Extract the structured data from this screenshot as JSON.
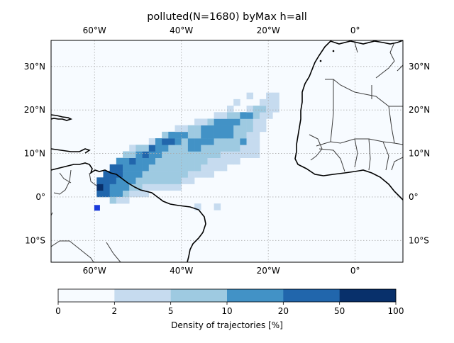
{
  "title": "polluted(N=1680) byMax h=all",
  "map": {
    "lon_range": [
      -70,
      11
    ],
    "lat_range": [
      -15,
      36
    ],
    "lon_ticks": [
      {
        "value": -60,
        "label": "60°W"
      },
      {
        "value": -40,
        "label": "40°W"
      },
      {
        "value": -20,
        "label": "20°W"
      },
      {
        "value": 0,
        "label": "0°"
      }
    ],
    "lat_ticks": [
      {
        "value": 30,
        "label": "30°N"
      },
      {
        "value": 20,
        "label": "20°N"
      },
      {
        "value": 10,
        "label": "10°N"
      },
      {
        "value": 0,
        "label": "0°"
      },
      {
        "value": -10,
        "label": "10°S"
      }
    ],
    "gridlines": true,
    "marker": {
      "lon": -59.4,
      "lat": -2.5,
      "color": "#1a3adb"
    }
  },
  "colorbar": {
    "label": "Density of trajectories [%]",
    "boundaries": [
      "0",
      "2",
      "5",
      "10",
      "20",
      "50",
      "100"
    ],
    "colors": [
      "#f7fbff",
      "#c6dbef",
      "#9ecae1",
      "#4292c6",
      "#2166ac",
      "#08306b"
    ]
  },
  "density_grid": {
    "lon_start": -70,
    "lat_start": -15,
    "cell_deg": 1.5,
    "level_note_levels": "0..5 map to colorbar bins",
    "rows": [
      {
        "lat_row": 10,
        "cells": [
          [
            -59.5,
            4
          ],
          [
            -58,
            4
          ],
          [
            -56.5,
            3
          ],
          [
            -55,
            3
          ],
          [
            -53.5,
            2
          ],
          [
            -52,
            1
          ],
          [
            -50.5,
            1
          ],
          [
            -49,
            1
          ]
        ]
      },
      {
        "lat_row": 11,
        "cells": [
          [
            -59.5,
            5
          ],
          [
            -58,
            4
          ],
          [
            -56.5,
            3
          ],
          [
            -55,
            3
          ],
          [
            -53.5,
            3
          ],
          [
            -52,
            2
          ],
          [
            -50.5,
            2
          ],
          [
            -49,
            1
          ],
          [
            -47.5,
            1
          ],
          [
            -46,
            1
          ],
          [
            -44.5,
            1
          ],
          [
            -43,
            1
          ],
          [
            -41.5,
            1
          ]
        ]
      },
      {
        "lat_row": 12,
        "cells": [
          [
            -59.5,
            4
          ],
          [
            -58,
            4
          ],
          [
            -56.5,
            4
          ],
          [
            -55,
            3
          ],
          [
            -53.5,
            3
          ],
          [
            -52,
            3
          ],
          [
            -50.5,
            2
          ],
          [
            -49,
            2
          ],
          [
            -47.5,
            2
          ],
          [
            -46,
            2
          ],
          [
            -44.5,
            2
          ],
          [
            -43,
            2
          ],
          [
            -41.5,
            2
          ],
          [
            -40,
            1
          ],
          [
            -38.5,
            1
          ]
        ]
      },
      {
        "lat_row": 13,
        "cells": [
          [
            -58,
            4
          ],
          [
            -56.5,
            4
          ],
          [
            -55,
            4
          ],
          [
            -53.5,
            3
          ],
          [
            -52,
            3
          ],
          [
            -50.5,
            3
          ],
          [
            -49,
            2
          ],
          [
            -47.5,
            2
          ],
          [
            -46,
            2
          ],
          [
            -44.5,
            2
          ],
          [
            -43,
            2
          ],
          [
            -41.5,
            2
          ],
          [
            -40,
            2
          ],
          [
            -38.5,
            1
          ],
          [
            -37,
            1
          ],
          [
            -35.5,
            1
          ],
          [
            -34,
            1
          ]
        ]
      },
      {
        "lat_row": 14,
        "cells": [
          [
            -56.5,
            4
          ],
          [
            -55,
            4
          ],
          [
            -53.5,
            3
          ],
          [
            -52,
            3
          ],
          [
            -50.5,
            3
          ],
          [
            -49,
            3
          ],
          [
            -47.5,
            2
          ],
          [
            -46,
            2
          ],
          [
            -44.5,
            2
          ],
          [
            -43,
            2
          ],
          [
            -41.5,
            2
          ],
          [
            -40,
            2
          ],
          [
            -38.5,
            2
          ],
          [
            -37,
            2
          ],
          [
            -35.5,
            1
          ],
          [
            -34,
            1
          ],
          [
            -32.5,
            1
          ],
          [
            -31,
            1
          ]
        ]
      },
      {
        "lat_row": 15,
        "cells": [
          [
            -55,
            3
          ],
          [
            -53.5,
            3
          ],
          [
            -52,
            4
          ],
          [
            -50.5,
            3
          ],
          [
            -49,
            3
          ],
          [
            -47.5,
            3
          ],
          [
            -46,
            2
          ],
          [
            -44.5,
            2
          ],
          [
            -43,
            2
          ],
          [
            -41.5,
            2
          ],
          [
            -40,
            2
          ],
          [
            -38.5,
            2
          ],
          [
            -37,
            2
          ],
          [
            -35.5,
            2
          ],
          [
            -34,
            1
          ],
          [
            -32.5,
            1
          ],
          [
            -31,
            1
          ],
          [
            -29.5,
            1
          ],
          [
            -28,
            1
          ]
        ]
      },
      {
        "lat_row": 16,
        "cells": [
          [
            -53.5,
            2
          ],
          [
            -52,
            2
          ],
          [
            -50.5,
            3
          ],
          [
            -49,
            4
          ],
          [
            -47.5,
            3
          ],
          [
            -46,
            3
          ],
          [
            -44.5,
            2
          ],
          [
            -43,
            2
          ],
          [
            -41.5,
            2
          ],
          [
            -40,
            2
          ],
          [
            -38.5,
            2
          ],
          [
            -37,
            2
          ],
          [
            -35.5,
            2
          ],
          [
            -34,
            2
          ],
          [
            -32.5,
            2
          ],
          [
            -31,
            1
          ],
          [
            -29.5,
            1
          ],
          [
            -28,
            1
          ],
          [
            -26.5,
            1
          ],
          [
            -25,
            1
          ],
          [
            -23.5,
            1
          ]
        ]
      },
      {
        "lat_row": 17,
        "cells": [
          [
            -52,
            1
          ],
          [
            -50.5,
            2
          ],
          [
            -49,
            2
          ],
          [
            -47.5,
            4
          ],
          [
            -46,
            3
          ],
          [
            -44.5,
            3
          ],
          [
            -43,
            2
          ],
          [
            -41.5,
            2
          ],
          [
            -40,
            2
          ],
          [
            -38.5,
            3
          ],
          [
            -37,
            3
          ],
          [
            -35.5,
            2
          ],
          [
            -34,
            2
          ],
          [
            -32.5,
            2
          ],
          [
            -31,
            2
          ],
          [
            -29.5,
            2
          ],
          [
            -28,
            2
          ],
          [
            -26.5,
            1
          ],
          [
            -25,
            1
          ],
          [
            -23.5,
            1
          ]
        ]
      },
      {
        "lat_row": 18,
        "cells": [
          [
            -47.5,
            1
          ],
          [
            -46,
            3
          ],
          [
            -44.5,
            4
          ],
          [
            -43,
            4
          ],
          [
            -41.5,
            3
          ],
          [
            -40,
            2
          ],
          [
            -38.5,
            3
          ],
          [
            -37,
            3
          ],
          [
            -35.5,
            3
          ],
          [
            -34,
            3
          ],
          [
            -32.5,
            2
          ],
          [
            -31,
            2
          ],
          [
            -29.5,
            2
          ],
          [
            -28,
            2
          ],
          [
            -26.5,
            3
          ],
          [
            -25,
            1
          ],
          [
            -23.5,
            1
          ]
        ]
      },
      {
        "lat_row": 19,
        "cells": [
          [
            -44.5,
            2
          ],
          [
            -43,
            3
          ],
          [
            -41.5,
            3
          ],
          [
            -40,
            3
          ],
          [
            -38.5,
            2
          ],
          [
            -37,
            2
          ],
          [
            -35.5,
            3
          ],
          [
            -34,
            3
          ],
          [
            -32.5,
            3
          ],
          [
            -31,
            3
          ],
          [
            -29.5,
            3
          ],
          [
            -28,
            2
          ],
          [
            -26.5,
            2
          ],
          [
            -25,
            1
          ],
          [
            -23.5,
            1
          ]
        ]
      },
      {
        "lat_row": 20,
        "cells": [
          [
            -41.5,
            1
          ],
          [
            -40,
            1
          ],
          [
            -38.5,
            2
          ],
          [
            -37,
            2
          ],
          [
            -35.5,
            3
          ],
          [
            -34,
            3
          ],
          [
            -32.5,
            3
          ],
          [
            -31,
            3
          ],
          [
            -29.5,
            3
          ],
          [
            -28,
            2
          ],
          [
            -26.5,
            2
          ],
          [
            -25,
            2
          ],
          [
            -23.5,
            1
          ],
          [
            -22,
            1
          ]
        ]
      },
      {
        "lat_row": 21,
        "cells": [
          [
            -37,
            1
          ],
          [
            -35.5,
            1
          ],
          [
            -34,
            2
          ],
          [
            -32.5,
            3
          ],
          [
            -31,
            3
          ],
          [
            -29.5,
            3
          ],
          [
            -28,
            3
          ],
          [
            -26.5,
            2
          ],
          [
            -25,
            2
          ],
          [
            -23.5,
            1
          ],
          [
            -22,
            1
          ]
        ]
      },
      {
        "lat_row": 22,
        "cells": [
          [
            -32.5,
            1
          ],
          [
            -31,
            1
          ],
          [
            -29.5,
            2
          ],
          [
            -28,
            2
          ],
          [
            -26.5,
            3
          ],
          [
            -25,
            3
          ],
          [
            -23.5,
            2
          ],
          [
            -22,
            1
          ],
          [
            -20.5,
            1
          ]
        ]
      },
      {
        "lat_row": 23,
        "cells": [
          [
            -29.5,
            1
          ],
          [
            -25,
            1
          ],
          [
            -23.5,
            2
          ],
          [
            -22,
            2
          ],
          [
            -20.5,
            1
          ],
          [
            -19,
            1
          ]
        ]
      },
      {
        "lat_row": 24,
        "cells": [
          [
            -28,
            1
          ],
          [
            -22,
            1
          ],
          [
            -20.5,
            1
          ],
          [
            -19,
            1
          ]
        ]
      },
      {
        "lat_row": 25,
        "cells": [
          [
            -25,
            1
          ],
          [
            -20.5,
            1
          ],
          [
            -19,
            1
          ]
        ]
      },
      {
        "lat_row": 9,
        "cells": [
          [
            -56.5,
            2
          ],
          [
            -55,
            1
          ],
          [
            -53.5,
            1
          ]
        ]
      },
      {
        "lat_row": 8,
        "cells": [
          [
            -32.5,
            1
          ],
          [
            -37,
            1
          ]
        ]
      }
    ]
  }
}
